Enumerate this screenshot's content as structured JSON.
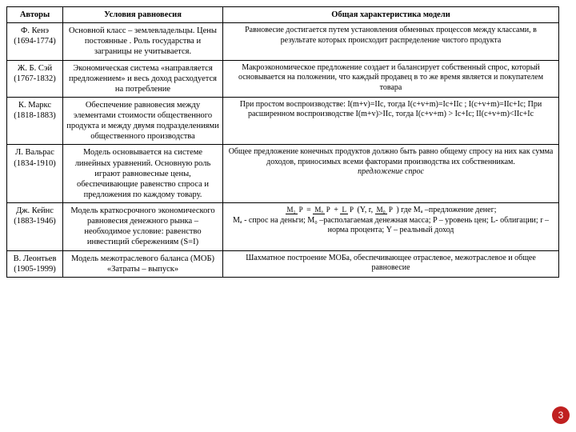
{
  "page_number": "3",
  "headers": {
    "authors": "Авторы",
    "conditions": "Условия равновесия",
    "characteristics": "Общая характеристика модели"
  },
  "rows": [
    {
      "author": "Ф. Кенэ (1694-1774)",
      "conditions": "Основной класс – землевладельцы. Цены постоянные . Роль государства и заграницы не учитывается.",
      "characteristics": "Равновесие достигается путем установления обменных процессов между классами, в результате которых происходит распределение чистого продукта"
    },
    {
      "author": "Ж. Б. Сэй (1767-1832)",
      "conditions": "Экономическая система «направляется предложением» и весь доход расходуется на потребление",
      "characteristics": "Макроэкономическое предложение создает и балансирует собственный спрос, который основывается на положении, что каждый продавец в то же время является и покупателем товара"
    },
    {
      "author": "К. Маркс (1818-1883)",
      "conditions": "Обеспечение равновесия между элементами стоимости общественного продукта и между двумя подразделениями общественного производства",
      "characteristics": "При простом воспроизводстве: I(m+v)=IIc, тогда I(c+v+m)=Ic+IIc ; I(c+v+m)=IIc+Ic; При расширенном воспроизводстве I(m+v)>IIc, тогда I(c+v+m) > Ic+Ic;  II(c+v+m)<IIc+Ic"
    },
    {
      "author": "Л. Вальрас (1834-1910)",
      "conditions": "Модель основывается на системе линейных уравнений. Основную роль играют равновесные цены, обеспечивающие равенство спроса и предложения по каждому товару.",
      "characteristics_main": "Общее предложение конечных продуктов должно быть равно общему спросу на них как сумма доходов, приносимых всеми факторами производства их собственникам.",
      "characteristics_italic": "предложение   спрос"
    },
    {
      "author": "Дж. Кейнс (1883-1946)",
      "conditions": "Модель краткосрочного экономического равновесия денежного рынка – необходимое условие: равенство инвестиций сбережениям (S=I)",
      "formula_parts": {
        "lhs_num": "M₁",
        "lhs_den": "P",
        "eq": " = ",
        "mid_num": "Mₐ",
        "mid_den": "P",
        "plus": " + ",
        "rhs1_num": "L",
        "rhs1_den": "P",
        "paren_open": "(",
        "paren_close": ")",
        "args": "Y, r,",
        "arg2_num": "M₀",
        "arg2_den": "P"
      },
      "after_formula": " где Mₐ –предложение денег;",
      "characteristics_rest": "Mₐ - спрос на деньги; M₀ –располагаемая денежная масса; P – уровень цен; L- облигации;  r – норма процента;  Y – реальный доход"
    },
    {
      "author": "В. Леонтьев (1905-1999)",
      "conditions": "Модель межотраслевого баланса (МОБ) «Затраты – выпуск»",
      "characteristics": "Шахматное построение МОБа, обеспечивающее отраслевое, межотраслевое и общее равновесие"
    }
  ]
}
